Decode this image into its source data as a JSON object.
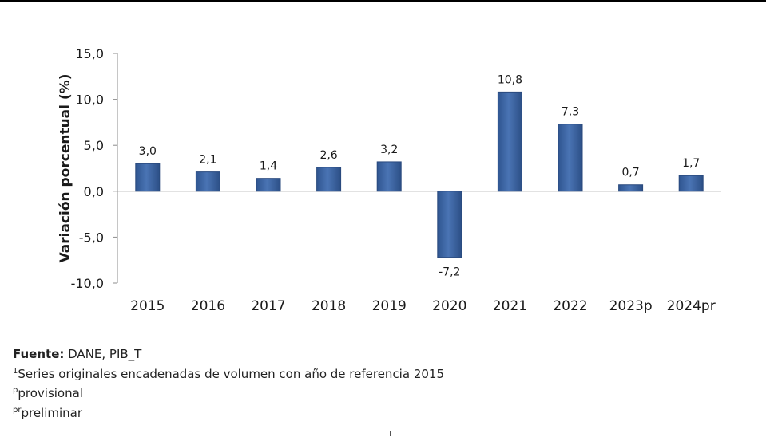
{
  "chart_data": {
    "type": "bar",
    "title": "",
    "xlabel": "",
    "ylabel": "Variación porcentual (%)",
    "categories": [
      "2015",
      "2016",
      "2017",
      "2018",
      "2019",
      "2020",
      "2021",
      "2022",
      "2023p",
      "2024pr"
    ],
    "values": [
      3.0,
      2.1,
      1.4,
      2.6,
      3.2,
      -7.2,
      10.8,
      7.3,
      0.7,
      1.7
    ],
    "value_labels": [
      "3,0",
      "2,1",
      "1,4",
      "2,6",
      "3,2",
      "-7,2",
      "10,8",
      "7,3",
      "0,7",
      "1,7"
    ],
    "ylim": [
      -10,
      15
    ],
    "yticks": [
      15,
      10,
      5,
      0,
      -5,
      -10
    ],
    "ytick_labels": [
      "15,0",
      "10,0",
      "5,0",
      "0,0",
      "-5,0",
      "-10,0"
    ],
    "grid": false,
    "bar_color": "#4169a8"
  },
  "footnotes": {
    "source_label": "Fuente:",
    "source_text": " DANE, PIB_T",
    "note1_mark": "1",
    "note1_text": "Series originales encadenadas de volumen con año de referencia 2015",
    "note2_mark": "p",
    "note2_text": "provisional",
    "note3_mark": "pr",
    "note3_text": "preliminar"
  }
}
